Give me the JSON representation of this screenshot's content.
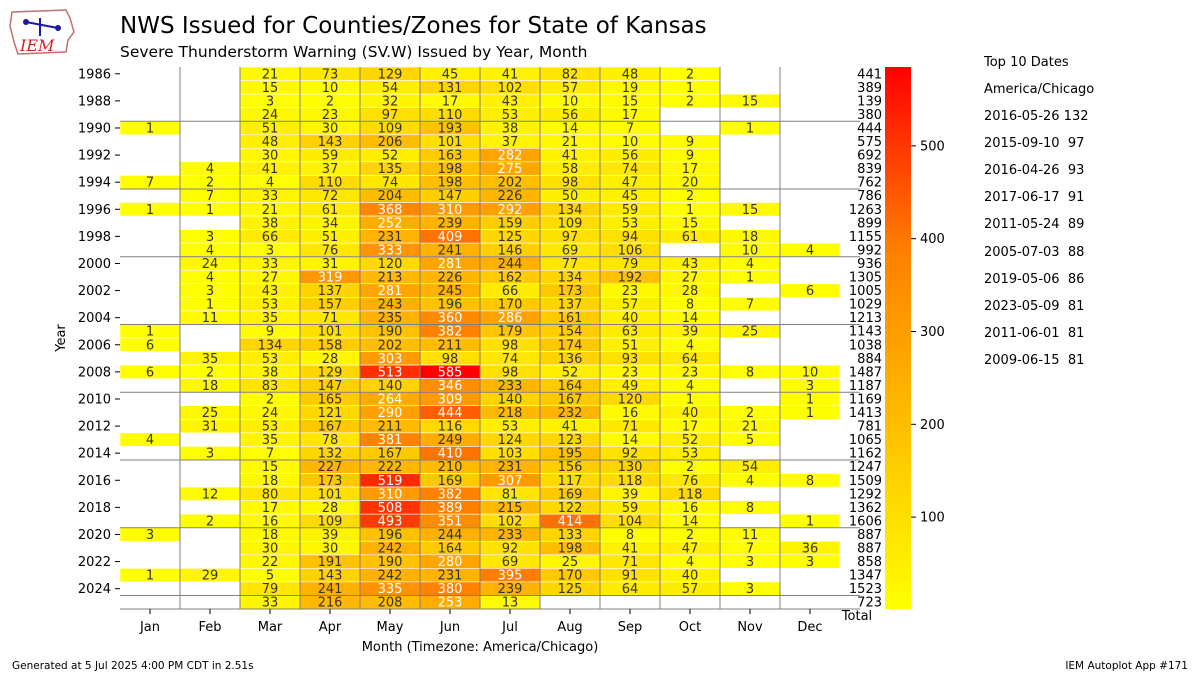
{
  "header": {
    "title": "NWS Issued for Counties/Zones for State of Kansas",
    "subtitle": "Severe Thunderstorm Warning (SV.W) Issued by Year, Month",
    "logo_text": "IEM"
  },
  "footer": {
    "generated": "Generated at 5 Jul 2025 4:00 PM CDT in 2.51s",
    "app": "IEM Autoplot App #171"
  },
  "top10": {
    "title": "Top 10 Dates",
    "timezone": "America/Chicago",
    "items": [
      "2016-05-26 132",
      "2015-09-10  97",
      "2016-04-26  93",
      "2017-06-17  91",
      "2011-05-24  89",
      "2005-07-03  88",
      "2019-05-06  86",
      "2023-05-09  81",
      "2011-06-01  81",
      "2009-06-15  81"
    ]
  },
  "chart_data": {
    "type": "heatmap",
    "xlabel": "Month (Timezone: America/Chicago)",
    "ylabel": "Year",
    "months": [
      "Jan",
      "Feb",
      "Mar",
      "Apr",
      "May",
      "Jun",
      "Jul",
      "Aug",
      "Sep",
      "Oct",
      "Nov",
      "Dec"
    ],
    "total_label": "Total",
    "years": [
      1986,
      1987,
      1988,
      1989,
      1990,
      1991,
      1992,
      1993,
      1994,
      1995,
      1996,
      1997,
      1998,
      1999,
      2000,
      2001,
      2002,
      2003,
      2004,
      2005,
      2006,
      2007,
      2008,
      2009,
      2010,
      2011,
      2012,
      2013,
      2014,
      2015,
      2016,
      2017,
      2018,
      2019,
      2020,
      2021,
      2022,
      2023,
      2024,
      2025
    ],
    "ytick_labels": [
      "1986",
      "1988",
      "1990",
      "1992",
      "1994",
      "1996",
      "1998",
      "2000",
      "2002",
      "2004",
      "2006",
      "2008",
      "2010",
      "2012",
      "2014",
      "2016",
      "2018",
      "2020",
      "2022",
      "2024"
    ],
    "values": [
      [
        null,
        null,
        21,
        73,
        129,
        45,
        41,
        82,
        48,
        2,
        null,
        null
      ],
      [
        null,
        null,
        15,
        10,
        54,
        131,
        102,
        57,
        19,
        1,
        null,
        null
      ],
      [
        null,
        null,
        3,
        2,
        32,
        17,
        43,
        10,
        15,
        2,
        15,
        null
      ],
      [
        null,
        null,
        24,
        23,
        97,
        110,
        53,
        56,
        17,
        null,
        null,
        null
      ],
      [
        1,
        null,
        51,
        30,
        109,
        193,
        38,
        14,
        7,
        null,
        1,
        null
      ],
      [
        null,
        null,
        48,
        143,
        206,
        101,
        37,
        21,
        10,
        9,
        null,
        null
      ],
      [
        null,
        null,
        30,
        59,
        52,
        163,
        282,
        41,
        56,
        9,
        null,
        null
      ],
      [
        null,
        4,
        41,
        37,
        135,
        198,
        275,
        58,
        74,
        17,
        null,
        null
      ],
      [
        7,
        2,
        4,
        110,
        74,
        198,
        202,
        98,
        47,
        20,
        null,
        null
      ],
      [
        null,
        7,
        33,
        72,
        204,
        147,
        226,
        50,
        45,
        2,
        null,
        null
      ],
      [
        1,
        1,
        21,
        61,
        368,
        310,
        292,
        134,
        59,
        1,
        15,
        null
      ],
      [
        null,
        null,
        38,
        34,
        252,
        239,
        159,
        109,
        53,
        15,
        null,
        null
      ],
      [
        null,
        3,
        66,
        51,
        231,
        409,
        125,
        97,
        94,
        61,
        18,
        null
      ],
      [
        null,
        4,
        3,
        76,
        333,
        241,
        146,
        69,
        106,
        null,
        10,
        4
      ],
      [
        null,
        24,
        33,
        31,
        120,
        281,
        244,
        77,
        79,
        43,
        4,
        null
      ],
      [
        null,
        4,
        27,
        319,
        213,
        226,
        162,
        134,
        192,
        27,
        1,
        null
      ],
      [
        null,
        3,
        43,
        137,
        281,
        245,
        66,
        173,
        23,
        28,
        null,
        6
      ],
      [
        null,
        1,
        53,
        157,
        243,
        196,
        170,
        137,
        57,
        8,
        7,
        null
      ],
      [
        null,
        11,
        35,
        71,
        235,
        360,
        286,
        161,
        40,
        14,
        null,
        null
      ],
      [
        1,
        null,
        9,
        101,
        190,
        382,
        179,
        154,
        63,
        39,
        25,
        null
      ],
      [
        6,
        null,
        134,
        158,
        202,
        211,
        98,
        174,
        51,
        4,
        null,
        null
      ],
      [
        null,
        35,
        53,
        28,
        303,
        98,
        74,
        136,
        93,
        64,
        null,
        null
      ],
      [
        6,
        2,
        38,
        129,
        513,
        585,
        98,
        52,
        23,
        23,
        8,
        10
      ],
      [
        null,
        18,
        83,
        147,
        140,
        346,
        233,
        164,
        49,
        4,
        null,
        3
      ],
      [
        null,
        null,
        2,
        165,
        264,
        309,
        140,
        167,
        120,
        1,
        null,
        1
      ],
      [
        null,
        25,
        24,
        121,
        290,
        444,
        218,
        232,
        16,
        40,
        2,
        1
      ],
      [
        null,
        31,
        53,
        167,
        211,
        116,
        53,
        41,
        71,
        17,
        21,
        null
      ],
      [
        4,
        null,
        35,
        78,
        381,
        249,
        124,
        123,
        14,
        52,
        5,
        null
      ],
      [
        null,
        3,
        7,
        132,
        167,
        410,
        103,
        195,
        92,
        53,
        null,
        null
      ],
      [
        null,
        null,
        15,
        227,
        222,
        210,
        231,
        156,
        130,
        2,
        54,
        null
      ],
      [
        null,
        null,
        18,
        173,
        519,
        169,
        307,
        117,
        118,
        76,
        4,
        8
      ],
      [
        null,
        12,
        80,
        101,
        310,
        382,
        81,
        169,
        39,
        118,
        null,
        null
      ],
      [
        null,
        null,
        17,
        28,
        508,
        389,
        215,
        122,
        59,
        16,
        8,
        null
      ],
      [
        null,
        2,
        16,
        109,
        493,
        351,
        102,
        414,
        104,
        14,
        null,
        1
      ],
      [
        3,
        null,
        18,
        39,
        196,
        244,
        233,
        133,
        8,
        2,
        11,
        null
      ],
      [
        null,
        null,
        30,
        30,
        242,
        164,
        92,
        198,
        41,
        47,
        7,
        36
      ],
      [
        null,
        null,
        22,
        191,
        190,
        280,
        69,
        25,
        71,
        4,
        3,
        3
      ],
      [
        1,
        29,
        5,
        143,
        242,
        231,
        395,
        170,
        91,
        40,
        null,
        null
      ],
      [
        null,
        null,
        79,
        241,
        335,
        380,
        239,
        125,
        64,
        57,
        3,
        null
      ],
      [
        null,
        null,
        33,
        216,
        208,
        253,
        13,
        null,
        null,
        null,
        null,
        null
      ]
    ],
    "totals": [
      441,
      389,
      139,
      380,
      444,
      575,
      692,
      839,
      762,
      786,
      1263,
      899,
      1155,
      992,
      936,
      1305,
      1005,
      1029,
      1213,
      1143,
      1038,
      884,
      1487,
      1187,
      1169,
      1413,
      781,
      1065,
      1162,
      1247,
      1509,
      1292,
      1362,
      1606,
      887,
      887,
      858,
      1347,
      1523,
      723
    ],
    "colorbar": {
      "min": 1,
      "max": 585,
      "ticks": [
        100,
        200,
        300,
        400,
        500
      ]
    },
    "colormap": [
      "#ffff00",
      "#ffc000",
      "#ff8000",
      "#ff0000"
    ]
  }
}
